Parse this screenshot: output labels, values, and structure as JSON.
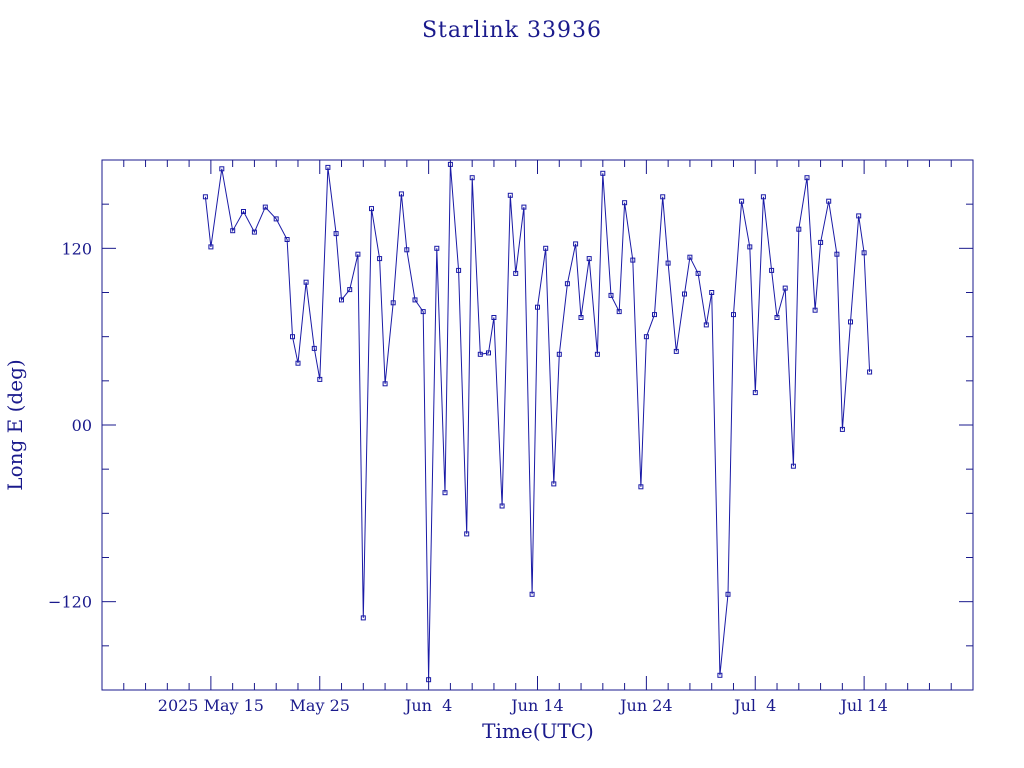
{
  "chart_data": {
    "type": "line",
    "title": "Starlink 33936",
    "xlabel": "Time(UTC)",
    "ylabel": "Long E (deg)",
    "colors": {
      "line": "#1a1aa6",
      "axis": "#1a1a8c",
      "text": "#1a1a8c"
    },
    "grid": false,
    "ylim": [
      -180,
      180
    ],
    "yticks": [
      {
        "value": 120,
        "label": "120"
      },
      {
        "value": 0,
        "label": "00"
      },
      {
        "value": -120,
        "label": "−120"
      }
    ],
    "xlim": [
      "2025-05-05",
      "2025-07-24"
    ],
    "xticks": [
      {
        "value": "2025-05-15",
        "label": "2025 May 15"
      },
      {
        "value": "2025-05-25",
        "label": "May 25"
      },
      {
        "value": "2025-06-04",
        "label": "Jun  4"
      },
      {
        "value": "2025-06-14",
        "label": "Jun 14"
      },
      {
        "value": "2025-06-24",
        "label": "Jun 24"
      },
      {
        "value": "2025-07-04",
        "label": "Jul  4"
      },
      {
        "value": "2025-07-14",
        "label": "Jul 14"
      }
    ],
    "series": [
      {
        "x": [
          "2025-05-14T12:00",
          "2025-05-15T00:00",
          "2025-05-16T00:00",
          "2025-05-17T00:00",
          "2025-05-18T00:00",
          "2025-05-19T00:00",
          "2025-05-20T00:00",
          "2025-05-21T00:00",
          "2025-05-22T00:00",
          "2025-05-22T12:00",
          "2025-05-23T00:00",
          "2025-05-23T18:00",
          "2025-05-24T12:00",
          "2025-05-25T00:00",
          "2025-05-25T18:00",
          "2025-05-26T12:00",
          "2025-05-27T00:00",
          "2025-05-27T18:00",
          "2025-05-28T12:00",
          "2025-05-29T00:00",
          "2025-05-29T18:00",
          "2025-05-30T12:00",
          "2025-05-31T00:00",
          "2025-05-31T18:00",
          "2025-06-01T12:00",
          "2025-06-02T00:00",
          "2025-06-02T18:00",
          "2025-06-03T12:00",
          "2025-06-04T00:00",
          "2025-06-04T18:00",
          "2025-06-05T12:00",
          "2025-06-06T00:00",
          "2025-06-06T18:00",
          "2025-06-07T12:00",
          "2025-06-08T00:00",
          "2025-06-08T18:00",
          "2025-06-09T12:00",
          "2025-06-10T00:00",
          "2025-06-10T18:00",
          "2025-06-11T12:00",
          "2025-06-12T00:00",
          "2025-06-12T18:00",
          "2025-06-13T12:00",
          "2025-06-14T00:00",
          "2025-06-14T18:00",
          "2025-06-15T12:00",
          "2025-06-16T00:00",
          "2025-06-16T18:00",
          "2025-06-17T12:00",
          "2025-06-18T00:00",
          "2025-06-18T18:00",
          "2025-06-19T12:00",
          "2025-06-20T00:00",
          "2025-06-20T18:00",
          "2025-06-21T12:00",
          "2025-06-22T00:00",
          "2025-06-22T18:00",
          "2025-06-23T12:00",
          "2025-06-24T00:00",
          "2025-06-24T18:00",
          "2025-06-25T12:00",
          "2025-06-26T00:00",
          "2025-06-26T18:00",
          "2025-06-27T12:00",
          "2025-06-28T00:00",
          "2025-06-28T18:00",
          "2025-06-29T12:00",
          "2025-06-30T00:00",
          "2025-06-30T18:00",
          "2025-07-01T12:00",
          "2025-07-02T00:00",
          "2025-07-02T18:00",
          "2025-07-03T12:00",
          "2025-07-04T00:00",
          "2025-07-04T18:00",
          "2025-07-05T12:00",
          "2025-07-06T00:00",
          "2025-07-06T18:00",
          "2025-07-07T12:00",
          "2025-07-08T00:00",
          "2025-07-08T18:00",
          "2025-07-09T12:00",
          "2025-07-10T00:00",
          "2025-07-10T18:00",
          "2025-07-11T12:00",
          "2025-07-12T00:00",
          "2025-07-12T18:00",
          "2025-07-13T12:00",
          "2025-07-14T00:00",
          "2025-07-14T12:00"
        ],
        "y": [
          155,
          121,
          174,
          132,
          145,
          131,
          148,
          140,
          126,
          60,
          42,
          97,
          52,
          31,
          175,
          130,
          85,
          92,
          116,
          -131,
          147,
          113,
          28,
          83,
          157,
          119,
          85,
          77,
          -173,
          120,
          -46,
          177,
          105,
          -74,
          168,
          48,
          49,
          73,
          -55,
          156,
          103,
          148,
          -115,
          80,
          120,
          -40,
          48,
          96,
          123,
          73,
          113,
          48,
          171,
          88,
          77,
          151,
          112,
          -42,
          60,
          75,
          155,
          110,
          50,
          89,
          114,
          103,
          68,
          90,
          -170,
          -115,
          75,
          152,
          121,
          22,
          155,
          105,
          73,
          93,
          -28,
          133,
          168,
          78,
          124,
          152,
          116,
          -3,
          70,
          142,
          117,
          36
        ]
      }
    ]
  }
}
